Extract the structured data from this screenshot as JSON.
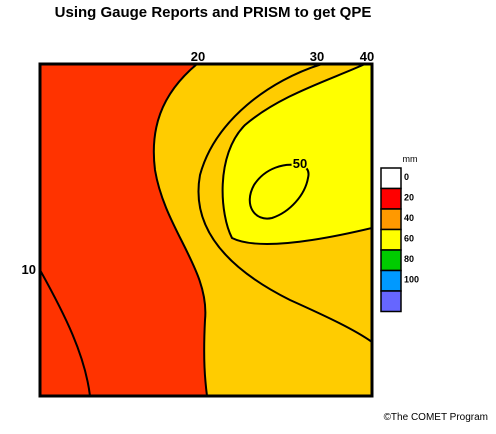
{
  "title": "Using Gauge Reports and PRISM to get QPE",
  "credit": "©The COMET Program",
  "chart_data": {
    "type": "heatmap",
    "title": "Using Gauge Reports and PRISM to get QPE",
    "units": "mm",
    "contour_labels": [
      "10",
      "20",
      "30",
      "40",
      "50"
    ],
    "legend": {
      "unit_label": "mm",
      "bins": [
        {
          "label": "0",
          "color": "#ffffff"
        },
        {
          "label": "20",
          "color": "#ff0000"
        },
        {
          "label": "40",
          "color": "#ff9900"
        },
        {
          "label": "60",
          "color": "#ffff00"
        },
        {
          "label": "80",
          "color": "#00cc00"
        },
        {
          "label": "100",
          "color": "#0099ff"
        },
        {
          "label": "",
          "color": "#6666ff"
        }
      ]
    },
    "fill_colors": {
      "left_region": "#ff3300",
      "middle_region": "#ffcc00",
      "core_region": "#ffff00"
    }
  }
}
